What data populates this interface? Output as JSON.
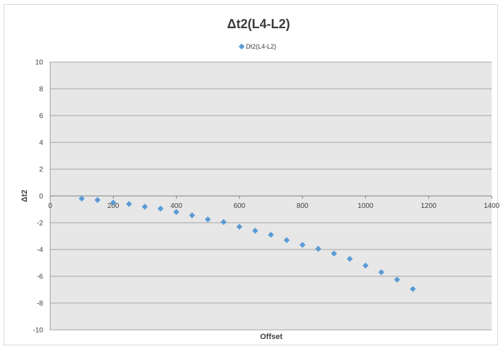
{
  "chart_data": {
    "type": "scatter",
    "title": "Δt2(L4-L2)",
    "xlabel": "Offset",
    "ylabel": "Δt2",
    "xlim": [
      0,
      1400
    ],
    "ylim": [
      -10,
      10
    ],
    "x_ticks": [
      0,
      200,
      400,
      600,
      800,
      1000,
      1200,
      1400
    ],
    "y_ticks": [
      -10,
      -8,
      -6,
      -4,
      -2,
      0,
      2,
      4,
      6,
      8,
      10
    ],
    "grid": true,
    "legend_position": "top-center",
    "marker_color": "#5b9bd5",
    "plot_background": "#e7e7e7",
    "series": [
      {
        "name": "Dt2(L4-L2)",
        "points": [
          {
            "x": 100,
            "y": -0.2
          },
          {
            "x": 150,
            "y": -0.3
          },
          {
            "x": 200,
            "y": -0.5
          },
          {
            "x": 250,
            "y": -0.6
          },
          {
            "x": 300,
            "y": -0.8
          },
          {
            "x": 350,
            "y": -0.95
          },
          {
            "x": 400,
            "y": -1.2
          },
          {
            "x": 450,
            "y": -1.45
          },
          {
            "x": 500,
            "y": -1.75
          },
          {
            "x": 550,
            "y": -1.95
          },
          {
            "x": 600,
            "y": -2.3
          },
          {
            "x": 650,
            "y": -2.6
          },
          {
            "x": 700,
            "y": -2.9
          },
          {
            "x": 750,
            "y": -3.3
          },
          {
            "x": 800,
            "y": -3.65
          },
          {
            "x": 850,
            "y": -3.95
          },
          {
            "x": 900,
            "y": -4.3
          },
          {
            "x": 950,
            "y": -4.7
          },
          {
            "x": 1000,
            "y": -5.2
          },
          {
            "x": 1050,
            "y": -5.7
          },
          {
            "x": 1100,
            "y": -6.25
          },
          {
            "x": 1150,
            "y": -6.95
          }
        ]
      }
    ]
  }
}
